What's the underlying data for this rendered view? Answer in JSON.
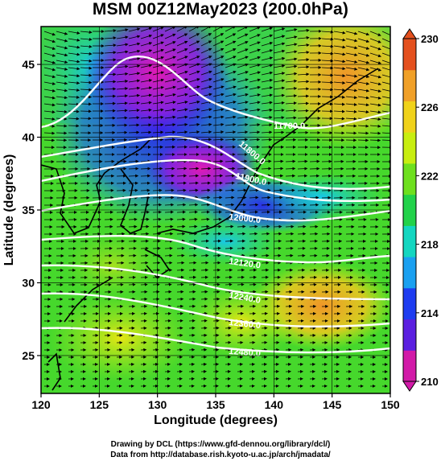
{
  "title": "MSM 00Z12May2023 (200.0hPa)",
  "x_axis": {
    "label": "Longitude (degrees)",
    "ticks": [
      "120",
      "125",
      "130",
      "135",
      "140",
      "145",
      "150"
    ]
  },
  "y_axis": {
    "label": "Latitude  (degrees)",
    "ticks": [
      "25",
      "30",
      "35",
      "40",
      "45"
    ]
  },
  "colorbar": {
    "ticks": [
      "210",
      "214",
      "218",
      "222",
      "226",
      "230"
    ],
    "colors": [
      "#d21aa8",
      "#5b1fe0",
      "#1e3cf0",
      "#1aa0f0",
      "#14d6c0",
      "#22d24a",
      "#6ee01e",
      "#c8ee10",
      "#f0d21a",
      "#f0a028",
      "#e4501e"
    ]
  },
  "contours": [
    {
      "label": "11700.0"
    },
    {
      "label": "11800.0"
    },
    {
      "label": "11900.0"
    },
    {
      "label": "12000.0"
    },
    {
      "label": "12120.0"
    },
    {
      "label": "12240.0"
    },
    {
      "label": "12360.0"
    },
    {
      "label": "12480.0"
    }
  ],
  "credits": {
    "line1": "Drawing by DCL (https://www.gfd-dennou.org/library/dcl/)",
    "line2": "Data from http://database.rish.kyoto-u.ac.jp/arch/jmadata/"
  }
}
